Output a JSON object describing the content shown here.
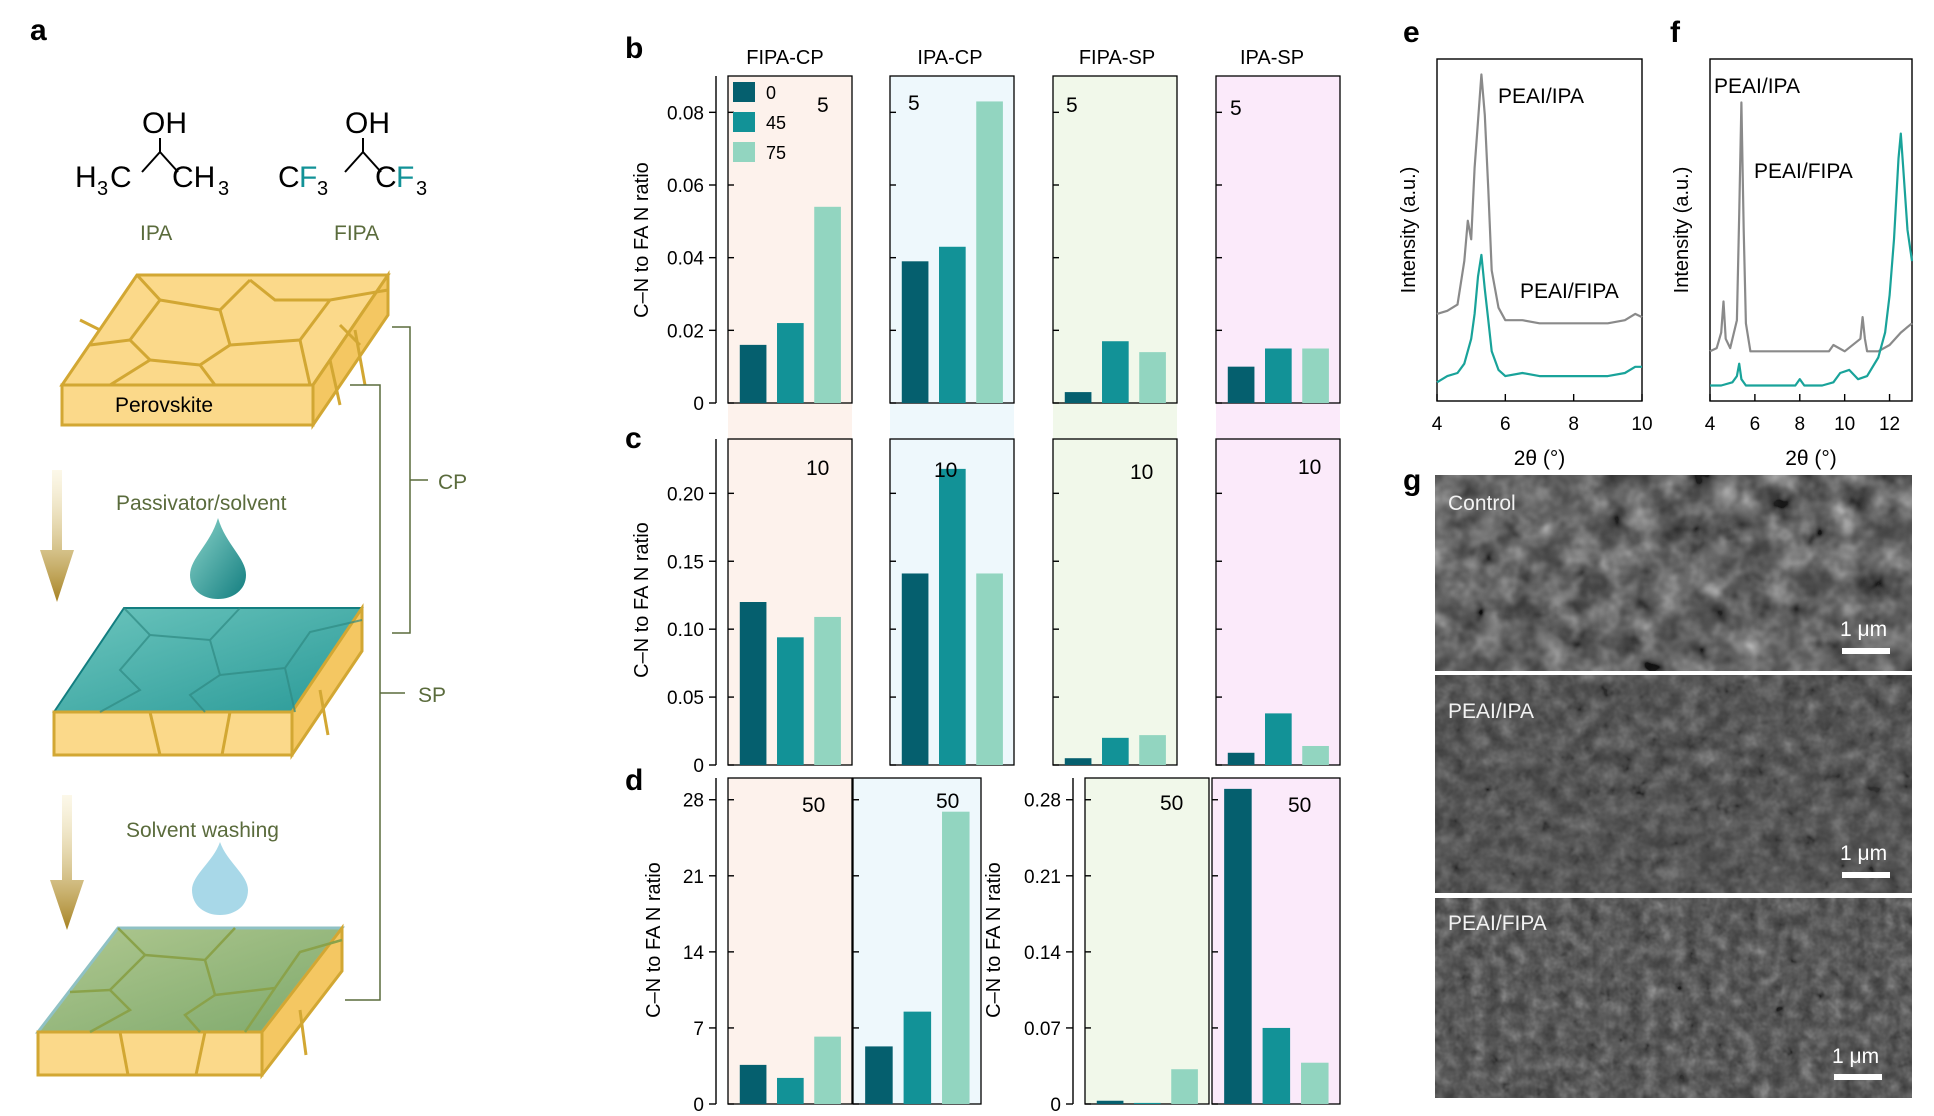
{
  "panel_labels": {
    "a": "a",
    "b": "b",
    "c": "c",
    "d": "d",
    "e": "e",
    "f": "f",
    "g": "g"
  },
  "schematic": {
    "ipa_oh": "OH",
    "ipa_left": "H",
    "ipa_left_sub": "3",
    "ipa_left_c": "C",
    "ipa_right": "CH",
    "ipa_right_sub": "3",
    "fipa_oh": "OH",
    "fipa_left_c": "C",
    "fipa_left_f": "F",
    "fipa_left_sub": "3",
    "fipa_right_c": "C",
    "fipa_right_f": "F",
    "fipa_right_sub": "3",
    "ipa_label": "IPA",
    "fipa_label": "FIPA",
    "perovskite_label": "Perovskite",
    "passivator_label": "Passivator/solvent",
    "washing_label": "Solvent washing",
    "cp_label": "CP",
    "sp_label": "SP"
  },
  "colors": {
    "dark_teal": "#055f6e",
    "mid_teal": "#129297",
    "light_teal": "#92d5c0",
    "peach_bg": "#fdf2ec",
    "blue_bg": "#eef8fc",
    "green_bg": "#f1f8ea",
    "pink_bg": "#fbeafa",
    "gray_line": "#8a8a8a",
    "teal_line": "#19a39a",
    "olive_text": "#5a6b3c"
  },
  "chart_data": [
    {
      "panel": "b",
      "type": "bar",
      "column_titles": [
        "FIPA-CP",
        "IPA-CP",
        "FIPA-SP",
        "IPA-SP"
      ],
      "ylabel": "C–N to FA N ratio",
      "ylim": [
        0,
        0.09
      ],
      "yticks": [
        "0",
        "0.02",
        "0.04",
        "0.06",
        "0.08"
      ],
      "ytick_values": [
        0,
        0.02,
        0.04,
        0.06,
        0.08
      ],
      "legend": [
        "0",
        "45",
        "75"
      ],
      "groups": [
        {
          "name": "FIPA-CP",
          "label": "5",
          "values": [
            0.016,
            0.022,
            0.054
          ]
        },
        {
          "name": "IPA-CP",
          "label": "5",
          "values": [
            0.039,
            0.043,
            0.083
          ]
        },
        {
          "name": "FIPA-SP",
          "label": "5",
          "values": [
            0.003,
            0.017,
            0.014
          ]
        },
        {
          "name": "IPA-SP",
          "label": "5",
          "values": [
            0.01,
            0.015,
            0.015
          ]
        }
      ]
    },
    {
      "panel": "c",
      "type": "bar",
      "ylabel": "C–N to FA N ratio",
      "ylim": [
        0,
        0.24
      ],
      "yticks": [
        "0",
        "0.05",
        "0.10",
        "0.15",
        "0.20"
      ],
      "ytick_values": [
        0,
        0.05,
        0.1,
        0.15,
        0.2
      ],
      "groups": [
        {
          "name": "FIPA-CP",
          "label": "10",
          "values": [
            0.12,
            0.094,
            0.109
          ]
        },
        {
          "name": "IPA-CP",
          "label": "10",
          "values": [
            0.141,
            0.218,
            0.141
          ]
        },
        {
          "name": "FIPA-SP",
          "label": "10",
          "values": [
            0.005,
            0.02,
            0.022
          ]
        },
        {
          "name": "IPA-SP",
          "label": "10",
          "values": [
            0.009,
            0.038,
            0.014
          ]
        }
      ]
    },
    {
      "panel": "d-left",
      "type": "bar",
      "ylabel": "C–N to FA N ratio",
      "ylim": [
        0,
        30
      ],
      "yticks": [
        "0",
        "7",
        "14",
        "21",
        "28"
      ],
      "ytick_values": [
        0,
        7,
        14,
        21,
        28
      ],
      "groups": [
        {
          "name": "FIPA-CP",
          "label": "50",
          "values": [
            3.6,
            2.4,
            6.2
          ]
        },
        {
          "name": "IPA-CP",
          "label": "50",
          "values": [
            5.3,
            8.5,
            26.9
          ]
        }
      ]
    },
    {
      "panel": "d-right",
      "type": "bar",
      "ylabel": "C–N to FA N ratio",
      "ylim": [
        0,
        0.3
      ],
      "yticks": [
        "0",
        "0.07",
        "0.14",
        "0.21",
        "0.28"
      ],
      "ytick_values": [
        0,
        0.07,
        0.14,
        0.21,
        0.28
      ],
      "groups": [
        {
          "name": "FIPA-SP",
          "label": "50",
          "values": [
            0.003,
            0.001,
            0.032
          ]
        },
        {
          "name": "IPA-SP",
          "label": "50",
          "values": [
            0.29,
            0.07,
            0.038
          ]
        }
      ]
    },
    {
      "panel": "e",
      "type": "line",
      "xlabel": "2θ (°)",
      "ylabel": "Intensity (a.u.)",
      "xlim": [
        4,
        10
      ],
      "ylim": [
        0,
        1.1
      ],
      "xticks": [
        "4",
        "6",
        "8",
        "10"
      ],
      "xtick_values": [
        4,
        6,
        8,
        10
      ],
      "series": [
        {
          "name": "PEAI/IPA",
          "x": [
            4.0,
            4.3,
            4.6,
            4.8,
            4.9,
            5.0,
            5.1,
            5.2,
            5.3,
            5.4,
            5.5,
            5.6,
            5.8,
            6.0,
            6.5,
            7.0,
            8.0,
            9.0,
            9.5,
            9.8,
            10.0
          ],
          "y": [
            0.28,
            0.29,
            0.31,
            0.45,
            0.58,
            0.52,
            0.75,
            0.9,
            1.05,
            0.92,
            0.68,
            0.42,
            0.3,
            0.26,
            0.26,
            0.25,
            0.25,
            0.25,
            0.26,
            0.28,
            0.27
          ]
        },
        {
          "name": "PEAI/FIPA",
          "x": [
            4.0,
            4.3,
            4.6,
            4.8,
            5.0,
            5.1,
            5.2,
            5.3,
            5.4,
            5.5,
            5.6,
            5.8,
            6.0,
            6.5,
            7.0,
            8.0,
            9.0,
            9.5,
            9.8,
            10.0
          ],
          "y": [
            0.06,
            0.08,
            0.09,
            0.12,
            0.2,
            0.28,
            0.4,
            0.47,
            0.36,
            0.26,
            0.16,
            0.1,
            0.08,
            0.09,
            0.08,
            0.08,
            0.08,
            0.09,
            0.11,
            0.11
          ]
        }
      ]
    },
    {
      "panel": "f",
      "type": "line",
      "xlabel": "2θ (°)",
      "ylabel": "Intensity (a.u.)",
      "xlim": [
        4,
        13
      ],
      "ylim": [
        0,
        1.1
      ],
      "xticks": [
        "4",
        "6",
        "8",
        "10",
        "12"
      ],
      "xtick_values": [
        4,
        6,
        8,
        10,
        12
      ],
      "series": [
        {
          "name": "PEAI/IPA",
          "x": [
            4.0,
            4.3,
            4.5,
            4.6,
            4.7,
            4.9,
            5.2,
            5.3,
            5.4,
            5.5,
            5.6,
            5.8,
            6.5,
            7.5,
            8.5,
            9.3,
            9.5,
            10.0,
            10.7,
            10.8,
            10.9,
            11.0,
            11.5,
            12.0,
            12.5,
            13.0
          ],
          "y": [
            0.16,
            0.17,
            0.22,
            0.32,
            0.2,
            0.17,
            0.26,
            0.6,
            0.96,
            0.55,
            0.25,
            0.16,
            0.16,
            0.16,
            0.16,
            0.16,
            0.18,
            0.16,
            0.2,
            0.27,
            0.2,
            0.16,
            0.16,
            0.18,
            0.22,
            0.25
          ]
        },
        {
          "name": "PEAI/FIPA",
          "x": [
            4.0,
            4.5,
            5.0,
            5.2,
            5.3,
            5.4,
            5.6,
            6.0,
            7.0,
            7.8,
            8.0,
            8.2,
            9.0,
            9.5,
            9.8,
            10.2,
            10.6,
            11.0,
            11.5,
            11.8,
            12.0,
            12.2,
            12.4,
            12.5,
            12.6,
            12.8,
            13.0
          ],
          "y": [
            0.05,
            0.05,
            0.06,
            0.08,
            0.12,
            0.07,
            0.05,
            0.05,
            0.05,
            0.05,
            0.07,
            0.05,
            0.05,
            0.06,
            0.09,
            0.1,
            0.07,
            0.08,
            0.14,
            0.22,
            0.34,
            0.52,
            0.78,
            0.86,
            0.76,
            0.55,
            0.45
          ]
        }
      ],
      "peak_labels": [
        "PEAI/IPA",
        "PEAI/FIPA"
      ]
    }
  ],
  "sem": {
    "images": [
      {
        "label": "Control",
        "scale": "1 μm"
      },
      {
        "label": "PEAI/IPA",
        "scale": "1 μm"
      },
      {
        "label": "PEAI/FIPA",
        "scale": "1 μm"
      }
    ]
  }
}
